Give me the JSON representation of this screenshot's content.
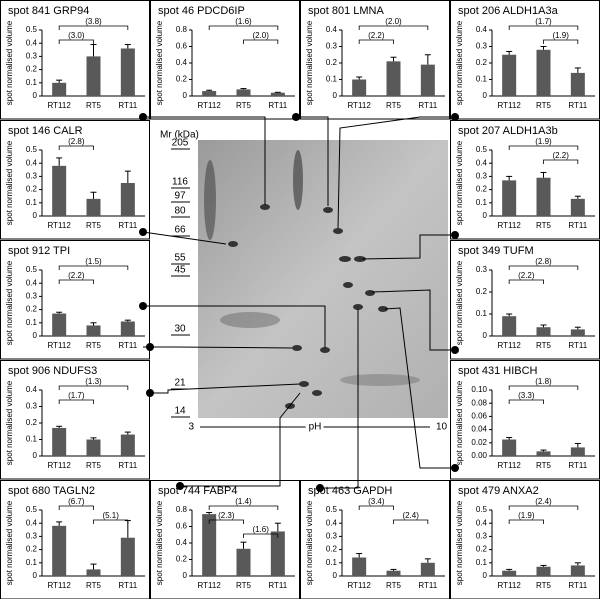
{
  "chart_data": [
    {
      "type": "bar",
      "title": "spot 841  GRP94",
      "ylabel": "spot normalised volume",
      "categories": [
        "RT112",
        "RT5",
        "RT11"
      ],
      "values": [
        0.1,
        0.3,
        0.36
      ],
      "errors": [
        0.02,
        0.09,
        0.03
      ],
      "color": "#595959",
      "ylim": [
        0,
        0.5
      ],
      "yticks": [
        0,
        0.1,
        0.2,
        0.3,
        0.4,
        0.5
      ],
      "annotations": [
        {
          "text": "(3.8)",
          "span": [
            0,
            2
          ]
        },
        {
          "text": "(3.0)",
          "span": [
            0,
            1
          ]
        }
      ]
    },
    {
      "type": "bar",
      "title": "spot 46  PDCD6IP",
      "ylabel": "spot normalised volume",
      "categories": [
        "RT112",
        "RT5",
        "RT11"
      ],
      "values": [
        0.06,
        0.08,
        0.04
      ],
      "errors": [
        0.01,
        0.01,
        0.005
      ],
      "color": "#595959",
      "ylim": [
        0,
        0.8
      ],
      "yticks": [
        0,
        0.2,
        0.4,
        0.6,
        0.8
      ],
      "annotations": [
        {
          "text": "(1.6)",
          "span": [
            0,
            2
          ]
        },
        {
          "text": "(2.0)",
          "span": [
            1,
            2
          ]
        }
      ]
    },
    {
      "type": "bar",
      "title": "spot 801  LMNA",
      "ylabel": "spot normalised volume",
      "categories": [
        "RT112",
        "RT5",
        "RT11"
      ],
      "values": [
        0.1,
        0.21,
        0.19
      ],
      "errors": [
        0.015,
        0.025,
        0.06
      ],
      "color": "#595959",
      "ylim": [
        0,
        0.4
      ],
      "yticks": [
        0,
        0.1,
        0.2,
        0.3,
        0.4
      ],
      "annotations": [
        {
          "text": "(2.0)",
          "span": [
            0,
            2
          ]
        },
        {
          "text": "(2.2)",
          "span": [
            0,
            1
          ]
        }
      ]
    },
    {
      "type": "bar",
      "title": "spot 206  ALDH1A3a",
      "ylabel": "spot normalised volume",
      "categories": [
        "RT112",
        "RT5",
        "RT11"
      ],
      "values": [
        0.25,
        0.28,
        0.14
      ],
      "errors": [
        0.02,
        0.02,
        0.03
      ],
      "color": "#595959",
      "ylim": [
        0,
        0.4
      ],
      "yticks": [
        0,
        0.1,
        0.2,
        0.3,
        0.4
      ],
      "annotations": [
        {
          "text": "(1.7)",
          "span": [
            0,
            2
          ]
        },
        {
          "text": "(1.9)",
          "span": [
            1,
            2
          ]
        }
      ]
    },
    {
      "type": "bar",
      "title": "spot 146  CALR",
      "ylabel": "spot normalised volume",
      "categories": [
        "RT112",
        "RT5",
        "RT11"
      ],
      "values": [
        0.38,
        0.13,
        0.25
      ],
      "errors": [
        0.06,
        0.05,
        0.09
      ],
      "color": "#595959",
      "ylim": [
        0,
        0.5
      ],
      "yticks": [
        0,
        0.1,
        0.2,
        0.3,
        0.4,
        0.5
      ],
      "annotations": [
        {
          "text": "(2.8)",
          "span": [
            0,
            1
          ]
        }
      ]
    },
    {
      "type": "bar",
      "title": "spot 207  ALDH1A3b",
      "ylabel": "spot normalised volume",
      "categories": [
        "RT112",
        "RT5",
        "RT11"
      ],
      "values": [
        0.27,
        0.29,
        0.13
      ],
      "errors": [
        0.03,
        0.04,
        0.02
      ],
      "color": "#595959",
      "ylim": [
        0,
        0.5
      ],
      "yticks": [
        0,
        0.1,
        0.2,
        0.3,
        0.4,
        0.5
      ],
      "annotations": [
        {
          "text": "(1.9)",
          "span": [
            0,
            2
          ]
        },
        {
          "text": "(2.2)",
          "span": [
            1,
            2
          ]
        }
      ]
    },
    {
      "type": "bar",
      "title": "spot 912  TPI",
      "ylabel": "spot normalised volume",
      "categories": [
        "RT112",
        "RT5",
        "RT11"
      ],
      "values": [
        0.17,
        0.08,
        0.11
      ],
      "errors": [
        0.01,
        0.02,
        0.01
      ],
      "color": "#595959",
      "ylim": [
        0,
        0.5
      ],
      "yticks": [
        0,
        0.1,
        0.2,
        0.3,
        0.4,
        0.5
      ],
      "annotations": [
        {
          "text": "(1.5)",
          "span": [
            0,
            2
          ]
        },
        {
          "text": "(2.2)",
          "span": [
            0,
            1
          ]
        }
      ]
    },
    {
      "type": "bar",
      "title": "spot 349  TUFM",
      "ylabel": "spot normalised volume",
      "categories": [
        "RT112",
        "RT5",
        "RT11"
      ],
      "values": [
        0.09,
        0.04,
        0.03
      ],
      "errors": [
        0.01,
        0.01,
        0.01
      ],
      "color": "#595959",
      "ylim": [
        0,
        0.3
      ],
      "yticks": [
        0,
        0.1,
        0.2,
        0.3
      ],
      "annotations": [
        {
          "text": "(2.8)",
          "span": [
            0,
            2
          ]
        },
        {
          "text": "(2.2)",
          "span": [
            0,
            1
          ]
        }
      ]
    },
    {
      "type": "bar",
      "title": "spot 906  NDUFS3",
      "ylabel": "spot normalised volume",
      "categories": [
        "RT112",
        "RT5",
        "RT11"
      ],
      "values": [
        0.17,
        0.1,
        0.13
      ],
      "errors": [
        0.01,
        0.01,
        0.015
      ],
      "color": "#595959",
      "ylim": [
        0,
        0.4
      ],
      "yticks": [
        0,
        0.1,
        0.2,
        0.3,
        0.4
      ],
      "annotations": [
        {
          "text": "(1.3)",
          "span": [
            0,
            2
          ]
        },
        {
          "text": "(1.7)",
          "span": [
            0,
            1
          ]
        }
      ]
    },
    {
      "type": "bar",
      "title": "spot 431  HIBCH",
      "ylabel": "spot normalised volume",
      "categories": [
        "RT112",
        "RT5",
        "RT11"
      ],
      "values": [
        0.025,
        0.007,
        0.013
      ],
      "errors": [
        0.003,
        0.002,
        0.006
      ],
      "color": "#595959",
      "ylim": [
        0,
        0.1
      ],
      "yticks": [
        {
          "value": 0,
          "label": "0.00"
        },
        {
          "value": 0.02,
          "label": "0.02"
        },
        {
          "value": 0.04,
          "label": "0.04"
        },
        {
          "value": 0.06,
          "label": "0.06"
        },
        {
          "value": 0.08,
          "label": "0.08"
        },
        {
          "value": 0.1,
          "label": "0.10"
        }
      ],
      "annotations": [
        {
          "text": "(1.8)",
          "span": [
            0,
            2
          ]
        },
        {
          "text": "(3.3)",
          "span": [
            0,
            1
          ]
        }
      ]
    },
    {
      "type": "bar",
      "title": "spot 680  TAGLN2",
      "ylabel": "spot normalised volume",
      "categories": [
        "RT112",
        "RT5",
        "RT11"
      ],
      "values": [
        0.38,
        0.05,
        0.29
      ],
      "errors": [
        0.03,
        0.04,
        0.13
      ],
      "color": "#595959",
      "ylim": [
        0,
        0.5
      ],
      "yticks": [
        0,
        0.1,
        0.2,
        0.3,
        0.4,
        0.5
      ],
      "annotations": [
        {
          "text": "(6.7)",
          "span": [
            0,
            1
          ]
        },
        {
          "text": "(5.1)",
          "span": [
            1,
            2
          ]
        }
      ]
    },
    {
      "type": "bar",
      "title": "spot 744  FABP4",
      "ylabel": "spot normalised volume",
      "categories": [
        "RT112",
        "RT5",
        "RT11"
      ],
      "values": [
        0.75,
        0.33,
        0.54
      ],
      "errors": [
        0.02,
        0.08,
        0.1
      ],
      "color": "#595959",
      "ylim": [
        0,
        0.8
      ],
      "yticks": [
        0,
        0.2,
        0.4,
        0.6,
        0.8
      ],
      "annotations": [
        {
          "text": "(1.4)",
          "span": [
            0,
            2
          ]
        },
        {
          "text": "(2.3)",
          "span": [
            0,
            1
          ]
        },
        {
          "text": "(1.6)",
          "span": [
            1,
            2
          ]
        }
      ]
    },
    {
      "type": "bar",
      "title": "spot 463  GAPDH",
      "ylabel": "spot normalised volume",
      "categories": [
        "RT112",
        "RT5",
        "RT11"
      ],
      "values": [
        0.14,
        0.04,
        0.1
      ],
      "errors": [
        0.03,
        0.01,
        0.03
      ],
      "color": "#595959",
      "ylim": [
        0,
        0.5
      ],
      "yticks": [
        0,
        0.1,
        0.2,
        0.3,
        0.4,
        0.5
      ],
      "annotations": [
        {
          "text": "(3.4)",
          "span": [
            0,
            1
          ]
        },
        {
          "text": "(2.4)",
          "span": [
            1,
            2
          ]
        }
      ]
    },
    {
      "type": "bar",
      "title": "spot 479  ANXA2",
      "ylabel": "spot normalised volume",
      "categories": [
        "RT112",
        "RT5",
        "RT11"
      ],
      "values": [
        0.04,
        0.07,
        0.08
      ],
      "errors": [
        0.01,
        0.01,
        0.02
      ],
      "color": "#595959",
      "ylim": [
        0,
        0.5
      ],
      "yticks": [
        0,
        0.1,
        0.2,
        0.3,
        0.4,
        0.5
      ],
      "annotations": [
        {
          "text": "(2.4)",
          "span": [
            0,
            2
          ]
        },
        {
          "text": "(1.9)",
          "span": [
            0,
            1
          ]
        }
      ]
    }
  ],
  "gel": {
    "mw_label": "Mr (kDa)",
    "mw_markers": [
      "205",
      "116",
      "97",
      "80",
      "66",
      "55",
      "45",
      "30",
      "21",
      "14"
    ],
    "ph_label": "pH",
    "ph_start": "3",
    "ph_end": "10"
  }
}
